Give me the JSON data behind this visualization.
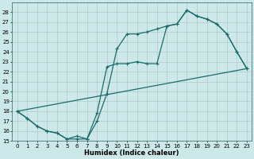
{
  "xlabel": "Humidex (Indice chaleur)",
  "bg_color": "#cde8e8",
  "grid_color": "#b0c8c8",
  "line_color": "#1a6b6b",
  "xlim": [
    -0.5,
    23.5
  ],
  "ylim": [
    15,
    29
  ],
  "yticks": [
    15,
    16,
    17,
    18,
    19,
    20,
    21,
    22,
    23,
    24,
    25,
    26,
    27,
    28
  ],
  "xticks": [
    0,
    1,
    2,
    3,
    4,
    5,
    6,
    7,
    8,
    9,
    10,
    11,
    12,
    13,
    14,
    15,
    16,
    17,
    18,
    19,
    20,
    21,
    22,
    23
  ],
  "curve1_x": [
    0,
    1,
    2,
    3,
    4,
    5,
    6,
    7,
    8,
    9,
    10,
    11,
    12,
    13,
    14,
    15,
    16,
    17,
    18,
    19,
    20,
    21,
    22,
    23
  ],
  "curve1_y": [
    18.0,
    17.3,
    16.5,
    16.0,
    15.8,
    15.2,
    15.2,
    15.2,
    17.0,
    19.8,
    24.3,
    25.8,
    25.8,
    26.0,
    26.3,
    26.6,
    26.8,
    28.2,
    27.6,
    27.3,
    26.8,
    25.8,
    24.0,
    22.3
  ],
  "curve2_x": [
    0,
    1,
    2,
    3,
    4,
    5,
    6,
    7,
    8,
    9,
    10,
    11,
    12,
    13,
    14,
    15,
    16,
    17,
    18,
    19,
    20,
    21,
    22,
    23
  ],
  "curve2_y": [
    18.0,
    17.3,
    16.5,
    16.0,
    15.8,
    15.2,
    15.5,
    15.2,
    17.8,
    22.5,
    22.8,
    22.8,
    23.0,
    22.8,
    22.8,
    26.6,
    26.8,
    28.2,
    27.6,
    27.3,
    26.8,
    25.8,
    24.0,
    22.3
  ],
  "line3_x": [
    0,
    23
  ],
  "line3_y": [
    18.0,
    22.3
  ]
}
